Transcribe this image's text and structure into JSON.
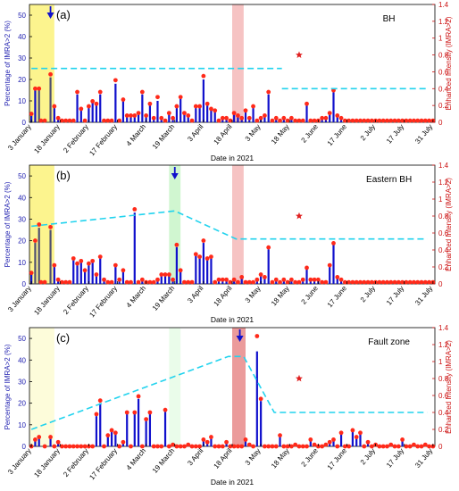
{
  "figure": {
    "x_tick_labels": [
      "3 January",
      "18 January",
      "2 February",
      "17 February",
      "4 March",
      "19 March",
      "3 April",
      "18 April",
      "3 May",
      "18 May",
      "2 June",
      "17 June",
      "2 July",
      "17 July",
      "31 July"
    ],
    "colors": {
      "bar": "#1010cc",
      "bar_dark": "#505070",
      "dot": "#ff2a1a",
      "dash": "#22d3ee",
      "star": "#e02020",
      "left_axis": "#2020b0",
      "right_axis": "#cc1010",
      "yellow": "#fbf27a",
      "green": "#c8f5c8",
      "red": "#f5b8b8"
    }
  },
  "chart_data": [
    {
      "type": "bar",
      "panel_label": "(a)",
      "region_label": "BH",
      "xlabel": "Date in 2021",
      "ylabel": "Percentage of IMRA>2 (%)",
      "y2label": "Enhanced Intensity (IMRA>2)",
      "ylim": [
        0,
        55
      ],
      "yticks": [
        "0",
        "10",
        "20",
        "30",
        "40",
        "50"
      ],
      "y2lim": [
        0,
        1.4
      ],
      "y2ticks": [
        "0",
        "0.2",
        "0.4",
        "0.6",
        "0.8",
        "1",
        "1.2",
        "1.4"
      ],
      "x": [
        1,
        3,
        5,
        6,
        8,
        11,
        13,
        15,
        17,
        19,
        21,
        23,
        25,
        27,
        29,
        31,
        33,
        35,
        37,
        39,
        41,
        43,
        45,
        47,
        49,
        51,
        53,
        55,
        57,
        59,
        61,
        63,
        65,
        67,
        69,
        71,
        73,
        75,
        77,
        79,
        81,
        83,
        85,
        87,
        89,
        91,
        93,
        95,
        97,
        99,
        101,
        103,
        105,
        107,
        109,
        111,
        113,
        115,
        117,
        119,
        121,
        123,
        125,
        127,
        129,
        131,
        133,
        135,
        137,
        139,
        141,
        143,
        145,
        147,
        149,
        151,
        153,
        155,
        157,
        159,
        161,
        163,
        165,
        167,
        169,
        171,
        173,
        175,
        177,
        179,
        181,
        183,
        185,
        187,
        189,
        191,
        193,
        195,
        197,
        199,
        201,
        203,
        205,
        207,
        209,
        211
      ],
      "values": [
        3,
        15,
        15,
        1,
        1,
        21,
        7,
        2,
        1,
        1,
        1,
        1,
        13,
        6,
        1,
        7,
        9,
        8,
        13,
        1,
        1,
        1,
        18,
        1,
        10,
        3,
        3,
        3,
        4,
        13,
        3,
        8,
        2,
        10,
        2,
        1,
        4,
        2,
        7,
        11,
        4,
        3,
        1,
        7,
        7,
        20,
        8,
        6,
        5,
        1,
        2,
        2,
        1,
        4,
        3,
        2,
        5,
        2,
        7,
        1,
        2,
        3,
        13,
        1,
        2,
        1,
        2,
        1,
        2,
        1,
        1,
        1,
        8,
        1,
        1,
        1,
        2,
        2,
        4,
        14,
        3,
        2,
        1,
        1,
        1,
        1,
        1,
        1,
        1,
        1,
        1,
        1,
        1,
        1,
        1,
        1,
        1,
        1,
        1,
        1,
        1,
        1,
        1,
        1,
        1,
        1
      ],
      "intensity": [
        0.1,
        0.4,
        0.4,
        0.02,
        0.02,
        0.57,
        0.19,
        0.05,
        0.02,
        0.02,
        0.02,
        0.02,
        0.36,
        0.16,
        0.02,
        0.19,
        0.25,
        0.22,
        0.36,
        0.02,
        0.02,
        0.02,
        0.5,
        0.02,
        0.27,
        0.08,
        0.08,
        0.08,
        0.11,
        0.36,
        0.08,
        0.22,
        0.05,
        0.3,
        0.05,
        0.02,
        0.11,
        0.05,
        0.19,
        0.3,
        0.11,
        0.08,
        0.02,
        0.19,
        0.19,
        0.55,
        0.22,
        0.16,
        0.14,
        0.02,
        0.05,
        0.05,
        0.02,
        0.11,
        0.08,
        0.05,
        0.14,
        0.05,
        0.19,
        0.02,
        0.05,
        0.08,
        0.36,
        0.02,
        0.05,
        0.02,
        0.05,
        0.02,
        0.05,
        0.02,
        0.02,
        0.02,
        0.22,
        0.02,
        0.02,
        0.02,
        0.05,
        0.05,
        0.11,
        0.38,
        0.08,
        0.05,
        0.02,
        0.02,
        0.02,
        0.02,
        0.02,
        0.02,
        0.02,
        0.02,
        0.02,
        0.02,
        0.02,
        0.02,
        0.02,
        0.02,
        0.02,
        0.02,
        0.02,
        0.02,
        0.02,
        0.02,
        0.02,
        0.02,
        0.02,
        0.02
      ],
      "dark_bars_x": [
        5,
        6,
        11
      ],
      "arrow_x": 11,
      "star": {
        "x": 141,
        "y2": 0.8
      },
      "dashed_lines": [
        {
          "x": [
            1,
            132
          ],
          "y2": [
            0.64,
            0.64
          ]
        },
        {
          "x": [
            132,
            208
          ],
          "y2": [
            0.4,
            0.4
          ]
        }
      ],
      "shaded_regions": [
        {
          "color": "yellow",
          "x": [
            0,
            13
          ]
        },
        {
          "color": "red",
          "x": [
            106,
            112
          ]
        }
      ]
    },
    {
      "type": "bar",
      "panel_label": "(b)",
      "region_label": "Eastern BH",
      "xlabel": "Date in 2021",
      "ylabel": "Percentage of IMRA>2 (%)",
      "y2label": "Enhanced Intensity (IMRA>2)",
      "ylim": [
        0,
        55
      ],
      "yticks": [
        "0",
        "10",
        "20",
        "30",
        "40",
        "50"
      ],
      "y2lim": [
        0,
        1.4
      ],
      "y2ticks": [
        "0",
        "0.2",
        "0.4",
        "0.6",
        "0.8",
        "1",
        "1.2",
        "1.4"
      ],
      "x": [
        1,
        3,
        5,
        6,
        8,
        11,
        13,
        15,
        17,
        19,
        21,
        23,
        25,
        27,
        29,
        31,
        33,
        35,
        37,
        39,
        41,
        43,
        45,
        47,
        49,
        51,
        53,
        55,
        57,
        59,
        61,
        63,
        65,
        67,
        69,
        71,
        73,
        75,
        77,
        79,
        81,
        83,
        85,
        87,
        89,
        91,
        93,
        95,
        97,
        99,
        101,
        103,
        105,
        107,
        109,
        111,
        113,
        115,
        117,
        119,
        121,
        123,
        125,
        127,
        129,
        131,
        133,
        135,
        137,
        139,
        141,
        143,
        145,
        147,
        149,
        151,
        153,
        155,
        157,
        159,
        161,
        163,
        165,
        167,
        169,
        171,
        173,
        175,
        177,
        179,
        181,
        183,
        185,
        187,
        189,
        191,
        193,
        195,
        197,
        199,
        201,
        203,
        205,
        207,
        209,
        211
      ],
      "values": [
        5,
        19,
        26,
        1,
        1,
        25,
        8,
        2,
        1,
        1,
        1,
        11,
        9,
        10,
        6,
        9,
        10,
        4,
        12,
        2,
        1,
        1,
        8,
        2,
        6,
        1,
        1,
        33,
        1,
        2,
        1,
        1,
        1,
        2,
        4,
        4,
        4,
        2,
        17,
        6,
        1,
        1,
        1,
        13,
        12,
        19,
        11,
        12,
        1,
        2,
        2,
        2,
        1,
        2,
        1,
        3,
        1,
        1,
        1,
        2,
        4,
        3,
        16,
        1,
        2,
        1,
        2,
        1,
        2,
        1,
        1,
        2,
        7,
        2,
        2,
        2,
        1,
        1,
        8,
        18,
        3,
        2,
        1,
        1,
        1,
        1,
        1,
        1,
        1,
        1,
        1,
        1,
        1,
        1,
        1,
        1,
        1,
        1,
        1,
        1,
        1,
        1,
        1,
        1,
        1,
        1
      ],
      "intensity": [
        0.13,
        0.51,
        0.7,
        0.02,
        0.02,
        0.67,
        0.22,
        0.05,
        0.02,
        0.02,
        0.02,
        0.3,
        0.24,
        0.27,
        0.16,
        0.24,
        0.27,
        0.11,
        0.32,
        0.05,
        0.02,
        0.02,
        0.22,
        0.05,
        0.16,
        0.02,
        0.02,
        0.88,
        0.02,
        0.05,
        0.02,
        0.02,
        0.02,
        0.05,
        0.11,
        0.11,
        0.11,
        0.05,
        0.46,
        0.16,
        0.02,
        0.02,
        0.02,
        0.35,
        0.32,
        0.51,
        0.3,
        0.32,
        0.02,
        0.05,
        0.05,
        0.05,
        0.02,
        0.05,
        0.02,
        0.08,
        0.02,
        0.02,
        0.02,
        0.05,
        0.11,
        0.08,
        0.43,
        0.02,
        0.05,
        0.02,
        0.05,
        0.02,
        0.05,
        0.02,
        0.02,
        0.05,
        0.19,
        0.05,
        0.05,
        0.05,
        0.02,
        0.02,
        0.22,
        0.48,
        0.08,
        0.05,
        0.02,
        0.02,
        0.02,
        0.02,
        0.02,
        0.02,
        0.02,
        0.02,
        0.02,
        0.02,
        0.02,
        0.02,
        0.02,
        0.02,
        0.02,
        0.02,
        0.02,
        0.02,
        0.02,
        0.02,
        0.02,
        0.02,
        0.02,
        0.02
      ],
      "dark_bars_x": [
        3,
        5,
        11,
        76
      ],
      "arrow_x": 76,
      "star": {
        "x": 141,
        "y2": 0.8
      },
      "dashed_lines": [
        {
          "x": [
            1,
            76,
            108,
            208
          ],
          "y2": [
            0.68,
            0.86,
            0.53,
            0.53
          ]
        }
      ],
      "shaded_regions": [
        {
          "color": "yellow",
          "x": [
            0,
            13
          ]
        },
        {
          "color": "green",
          "x": [
            73,
            79
          ]
        },
        {
          "color": "red",
          "x": [
            106,
            112
          ]
        }
      ]
    },
    {
      "type": "bar",
      "panel_label": "(c)",
      "region_label": "Fault zone",
      "xlabel": "Date in 2021",
      "ylabel": "Percentage of IMRA>2 (%)",
      "y2label": "Enhanced Intensity (IMRA>2)",
      "ylim": [
        0,
        55
      ],
      "yticks": [
        "0",
        "10",
        "20",
        "30",
        "40",
        "50"
      ],
      "y2lim": [
        0,
        1.4
      ],
      "y2ticks": [
        "0",
        "0.2",
        "0.4",
        "0.6",
        "0.8",
        "1",
        "1.2",
        "1.4"
      ],
      "x": [
        1,
        3,
        5,
        8,
        11,
        13,
        15,
        17,
        19,
        21,
        23,
        25,
        27,
        29,
        31,
        33,
        35,
        37,
        39,
        41,
        43,
        45,
        47,
        49,
        51,
        53,
        55,
        57,
        59,
        61,
        63,
        65,
        67,
        69,
        71,
        73,
        75,
        77,
        79,
        81,
        83,
        85,
        87,
        89,
        91,
        93,
        95,
        97,
        99,
        101,
        103,
        105,
        107,
        109,
        111,
        113,
        115,
        117,
        119,
        121,
        123,
        125,
        127,
        129,
        131,
        133,
        135,
        137,
        139,
        141,
        143,
        145,
        147,
        149,
        151,
        153,
        155,
        157,
        159,
        161,
        163,
        165,
        167,
        169,
        171,
        173,
        175,
        177,
        179,
        181,
        183,
        185,
        187,
        189,
        191,
        193,
        195,
        197,
        199,
        201,
        203,
        205,
        207,
        209,
        211
      ],
      "values": [
        0,
        3,
        4,
        0,
        4,
        0,
        2,
        0,
        0,
        0,
        0,
        0,
        0,
        0,
        0,
        0,
        14,
        20,
        0,
        5,
        7,
        6,
        0,
        2,
        15,
        0,
        15,
        22,
        0,
        12,
        15,
        0,
        0,
        0,
        16,
        0,
        1,
        0,
        0,
        0,
        1,
        0,
        0,
        0,
        3,
        2,
        4,
        0,
        0,
        0,
        2,
        0,
        0,
        0,
        0,
        3,
        1,
        0,
        44,
        21,
        0,
        0,
        0,
        0,
        5,
        0,
        0,
        0,
        1,
        0,
        0,
        0,
        3,
        1,
        0,
        0,
        1,
        2,
        3,
        0,
        6,
        0,
        0,
        7,
        4,
        6,
        0,
        2,
        0,
        1,
        0,
        0,
        0,
        1,
        0,
        0,
        3,
        0,
        0,
        1,
        0,
        0,
        1,
        0,
        0
      ],
      "intensity": [
        0,
        0.08,
        0.11,
        0,
        0.11,
        0,
        0.05,
        0,
        0,
        0,
        0,
        0,
        0,
        0,
        0,
        0,
        0.38,
        0.54,
        0,
        0.13,
        0.19,
        0.16,
        0,
        0.05,
        0.4,
        0,
        0.4,
        0.59,
        0,
        0.32,
        0.4,
        0,
        0,
        0,
        0.43,
        0,
        0.02,
        0,
        0,
        0,
        0.02,
        0,
        0,
        0,
        0.08,
        0.05,
        0.11,
        0,
        0,
        0,
        0.05,
        0,
        0,
        0,
        0,
        0.08,
        0.02,
        0,
        1.3,
        0.56,
        0,
        0,
        0,
        0,
        0.13,
        0,
        0,
        0,
        0.02,
        0,
        0,
        0,
        0.08,
        0.02,
        0,
        0,
        0.02,
        0.05,
        0.08,
        0,
        0.16,
        0,
        0,
        0.19,
        0.11,
        0.16,
        0,
        0.05,
        0,
        0.02,
        0,
        0,
        0,
        0.02,
        0,
        0,
        0.08,
        0,
        0,
        0.02,
        0,
        0,
        0.02,
        0,
        0
      ],
      "dark_bars_x": [
        109
      ],
      "arrow_x": 110,
      "star": {
        "x": 141,
        "y2": 0.8
      },
      "dashed_lines": [
        {
          "x": [
            1,
            104,
            112,
            128,
            208
          ],
          "y2": [
            0.2,
            1.06,
            1.06,
            0.4,
            0.4
          ]
        }
      ],
      "shaded_regions": [
        {
          "color": "yellow_light",
          "x": [
            0,
            13
          ]
        },
        {
          "color": "green_light",
          "x": [
            73,
            79
          ]
        },
        {
          "color": "red_dark",
          "x": [
            106,
            113
          ]
        }
      ]
    }
  ]
}
